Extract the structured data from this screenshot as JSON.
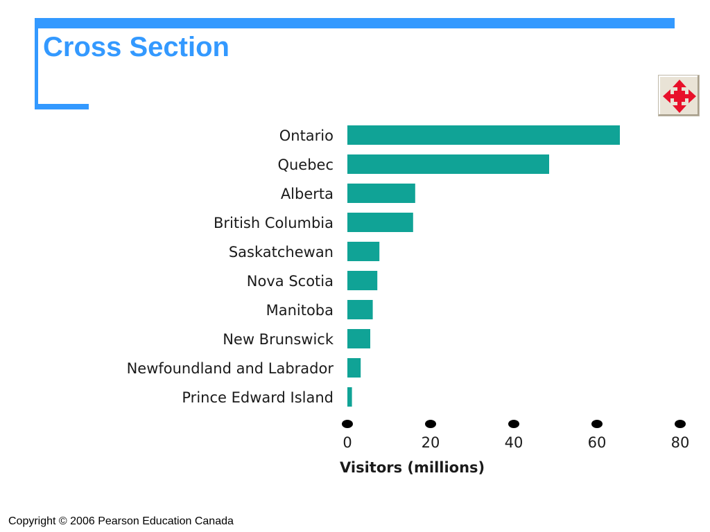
{
  "slide": {
    "title": "Cross Section",
    "copyright": "Copyright © 2006 Pearson Education Canada"
  },
  "colors": {
    "accent": "#3399ff",
    "bar": "#10a396",
    "nav_arrow": "#e8102a"
  },
  "icons": {
    "nav_button": "four-way-arrow-icon"
  },
  "chart_data": {
    "type": "bar",
    "orientation": "horizontal",
    "title": "",
    "xlabel": "Visitors (millions)",
    "ylabel": "",
    "categories": [
      "Ontario",
      "Quebec",
      "Alberta",
      "British Columbia",
      "Saskatchewan",
      "Nova Scotia",
      "Manitoba",
      "New Brunswick",
      "Newfoundland and Labrador",
      "Prince Edward Island"
    ],
    "values": [
      65.5,
      48.5,
      16.3,
      15.8,
      7.7,
      7.2,
      6.1,
      5.5,
      3.2,
      1.1
    ],
    "xlim": [
      0,
      80
    ],
    "x_ticks": [
      "0",
      "20",
      "40",
      "60",
      "80"
    ],
    "grid": false,
    "legend": "none"
  }
}
